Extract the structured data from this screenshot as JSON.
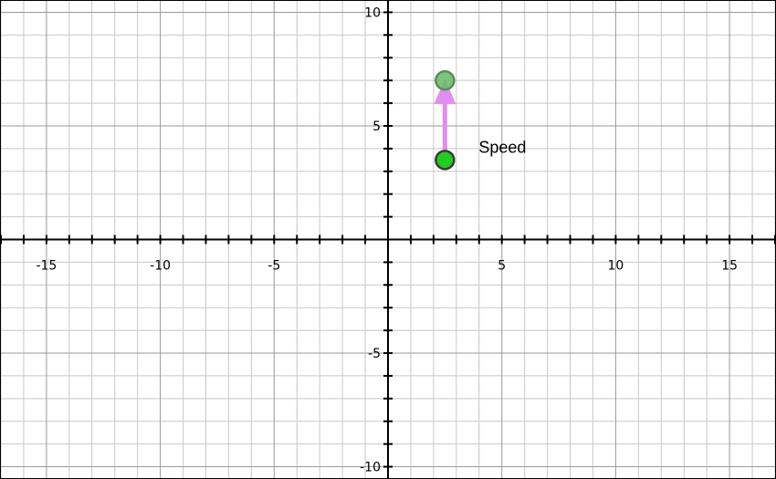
{
  "graph": {
    "x_range": [
      -17,
      17
    ],
    "y_range": [
      -10.5,
      10.5
    ],
    "minor_step": 1,
    "major_step": 5,
    "x_tick_labels": [
      "-15",
      "-10",
      "-5",
      "5",
      "10",
      "15"
    ],
    "y_tick_labels": [
      "10",
      "5",
      "-5",
      "-10"
    ],
    "colors": {
      "minor_grid": "#c8c8c8",
      "major_grid": "#9a9a9a",
      "axis": "#000000",
      "vector": "#e08ef0",
      "base_point": "#22cc22",
      "tip_point": "#66bb66"
    }
  },
  "vector": {
    "label": "Speed",
    "base": [
      2.5,
      3.5
    ],
    "tip": [
      2.5,
      7
    ]
  }
}
